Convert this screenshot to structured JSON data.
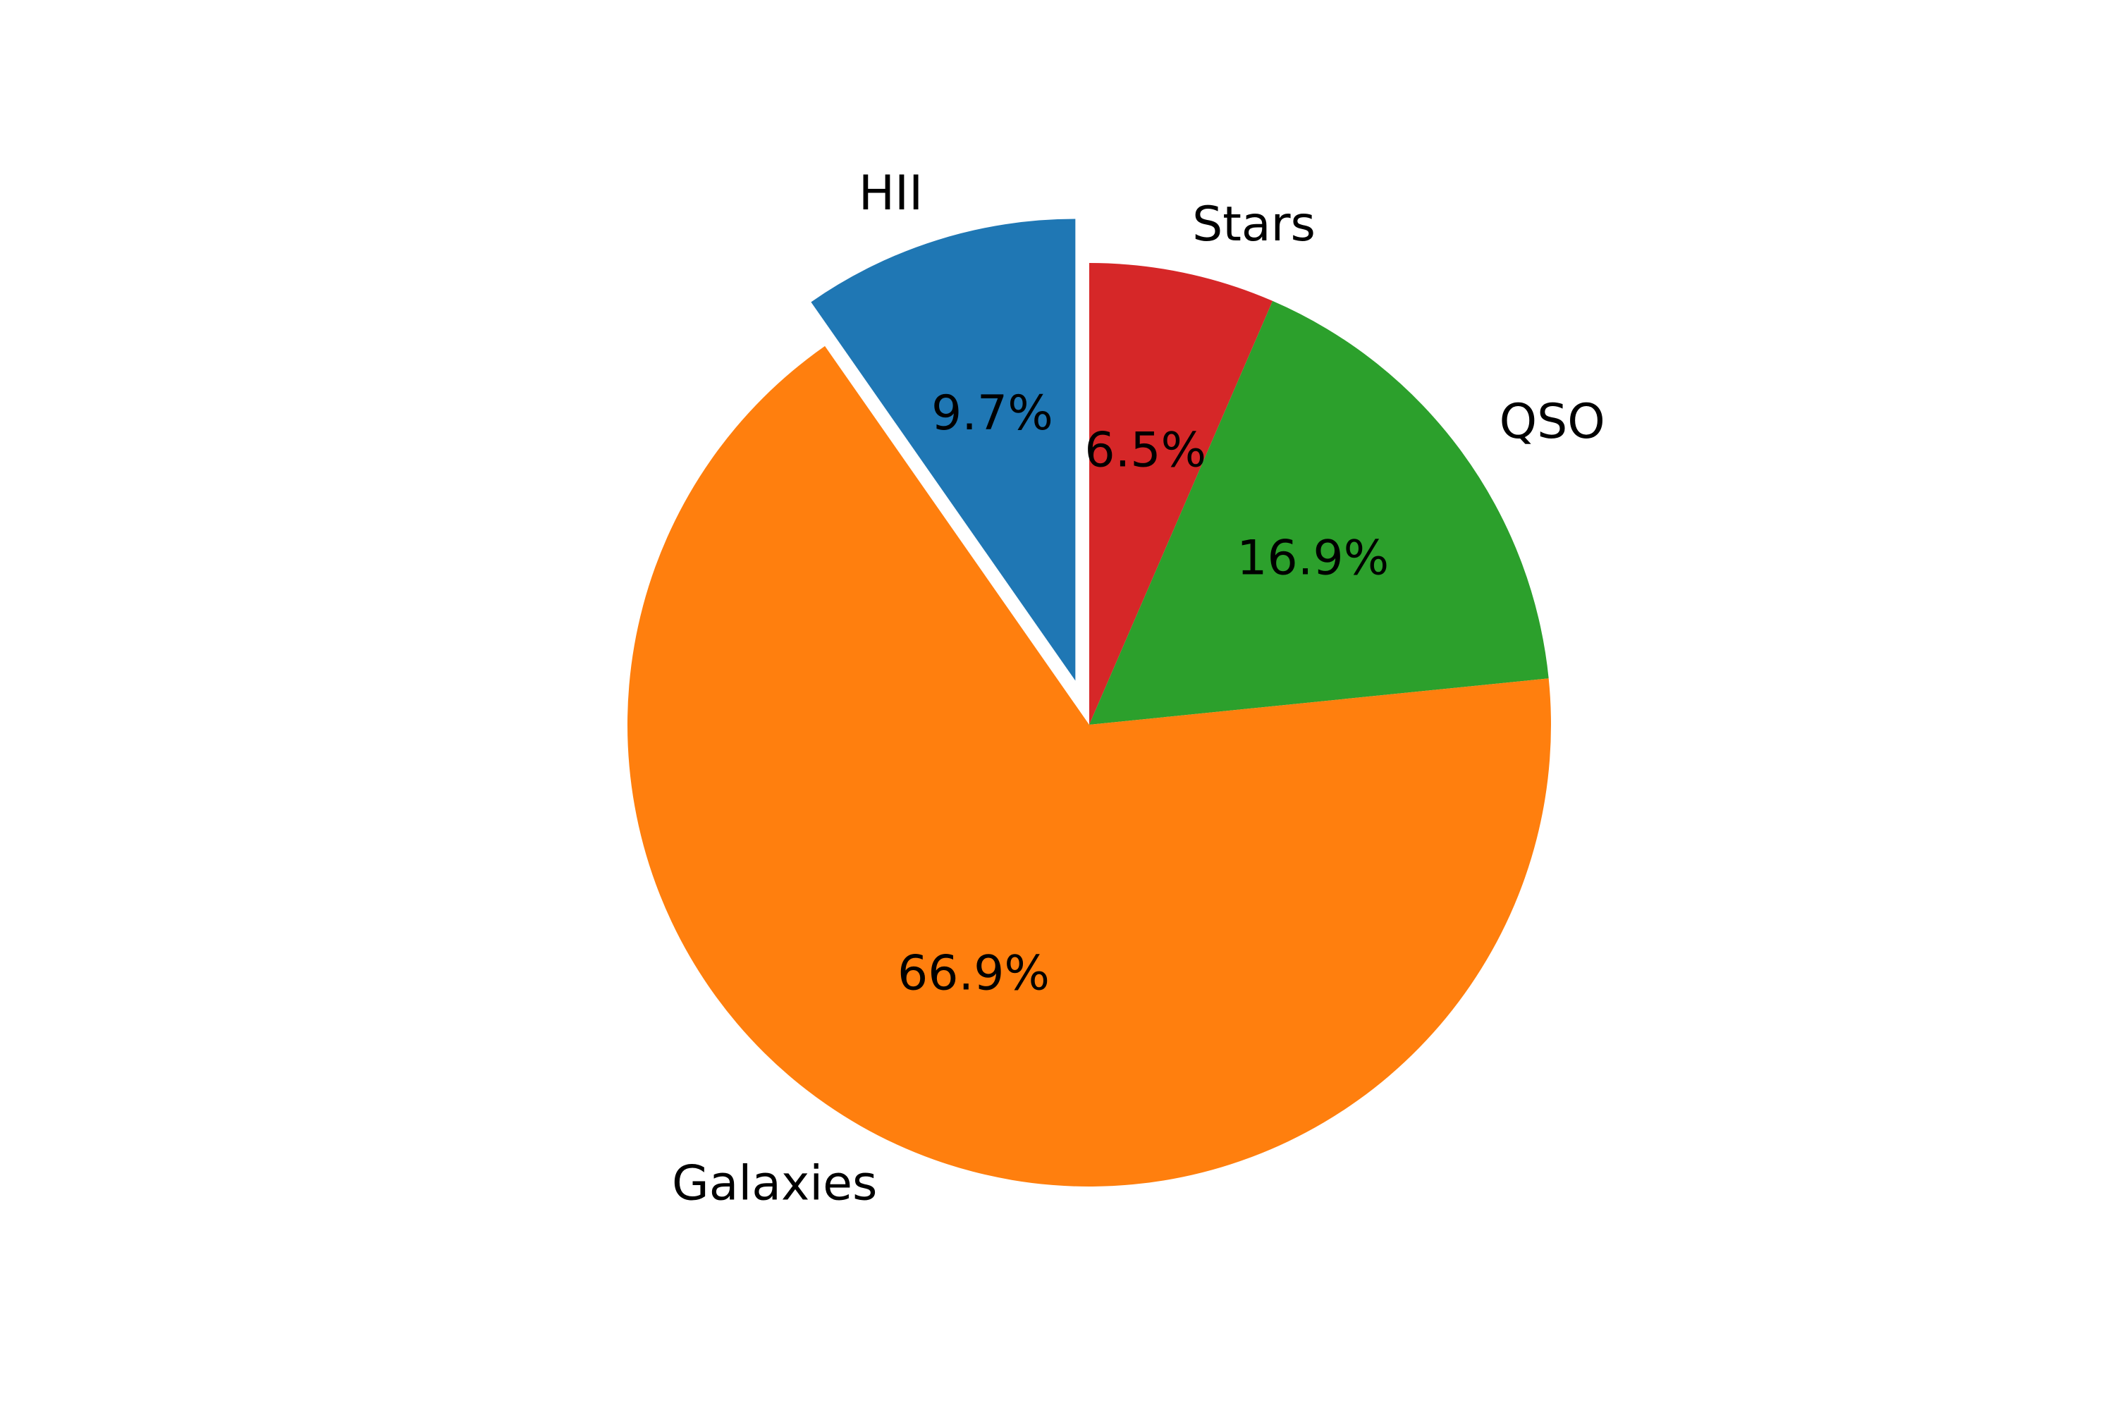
{
  "chart_data": {
    "type": "pie",
    "slices": [
      {
        "label": "Stars",
        "value": 6.5,
        "pct_label": "6.5%",
        "color": "#d62728",
        "explode": false
      },
      {
        "label": "QSO",
        "value": 16.9,
        "pct_label": "16.9%",
        "color": "#2ca02c",
        "explode": false
      },
      {
        "label": "Galaxies",
        "value": 66.9,
        "pct_label": "66.9%",
        "color": "#ff7f0e",
        "explode": false
      },
      {
        "label": "HII",
        "value": 9.7,
        "pct_label": "9.7%",
        "color": "#1f77b4",
        "explode": true
      }
    ],
    "direction": "clockwise",
    "start": "top",
    "legend": "none"
  }
}
